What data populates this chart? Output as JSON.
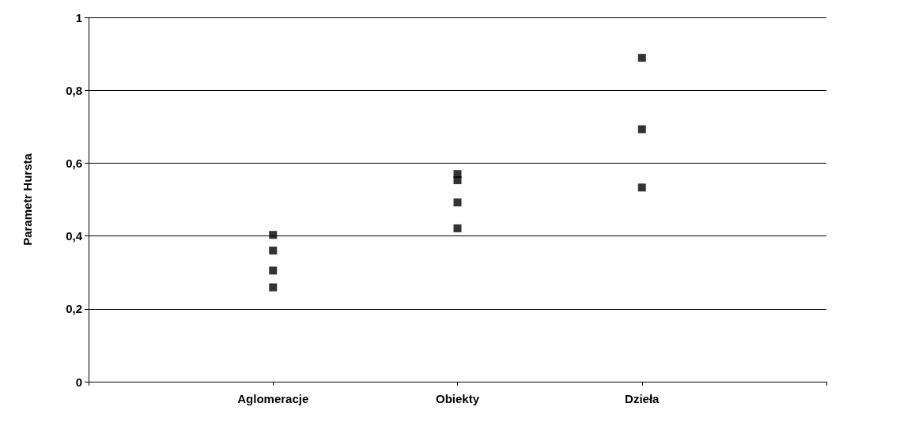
{
  "chart_data": {
    "type": "scatter",
    "ylabel": "Parametr Hursta",
    "categories": [
      "Aglomeracje",
      "Obiekty",
      "Dzieła"
    ],
    "series": [
      {
        "color": "#000000",
        "x": [
          "Aglomeracje",
          "Aglomeracje",
          "Aglomeracje",
          "Aglomeracje",
          "Obiekty",
          "Obiekty",
          "Obiekty",
          "Obiekty",
          "Dzieła",
          "Dzieła",
          "Dzieła"
        ],
        "values": [
          0.403,
          0.36,
          0.305,
          0.259,
          0.57,
          0.553,
          0.492,
          0.421,
          0.889,
          0.693,
          0.533
        ]
      }
    ],
    "ylim": [
      0,
      1
    ],
    "yticks": [
      0,
      {
        "value": 0.2,
        "label": "0,2"
      },
      {
        "value": 0.4,
        "label": "0,4"
      },
      {
        "value": 0.6,
        "label": "0,6"
      },
      {
        "value": 0.8,
        "label": "0,8"
      },
      1
    ],
    "grid": "y",
    "marker": "square"
  }
}
